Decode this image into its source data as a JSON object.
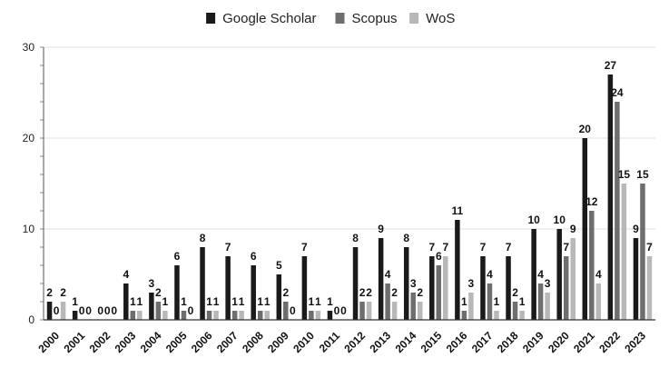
{
  "chart_data": {
    "type": "bar",
    "title": "",
    "xlabel": "",
    "ylabel": "",
    "ylim": [
      0,
      30
    ],
    "yticks": [
      0,
      10,
      20,
      30
    ],
    "grid": true,
    "legend_position": "top-center",
    "categories": [
      "2000",
      "2001",
      "2002",
      "2003",
      "2004",
      "2005",
      "2006",
      "2007",
      "2008",
      "2009",
      "2010",
      "2011",
      "2012",
      "2013",
      "2014",
      "2015",
      "2016",
      "2017",
      "2018",
      "2019",
      "2020",
      "2021",
      "2022",
      "2023"
    ],
    "series": [
      {
        "name": "Google Scholar",
        "color": "#1a1a1a",
        "values": [
          2,
          1,
          0,
          4,
          3,
          6,
          8,
          7,
          6,
          5,
          7,
          1,
          8,
          9,
          8,
          7,
          11,
          7,
          7,
          10,
          10,
          20,
          27,
          9
        ]
      },
      {
        "name": "Scopus",
        "color": "#6e6e6e",
        "values": [
          0,
          0,
          0,
          1,
          2,
          1,
          1,
          1,
          1,
          2,
          1,
          0,
          2,
          4,
          3,
          6,
          1,
          4,
          2,
          4,
          7,
          12,
          24,
          15
        ]
      },
      {
        "name": "WoS",
        "color": "#b8b8b8",
        "values": [
          2,
          0,
          0,
          1,
          1,
          0,
          1,
          1,
          1,
          0,
          1,
          0,
          2,
          2,
          2,
          7,
          3,
          1,
          1,
          3,
          9,
          4,
          15,
          7
        ]
      }
    ]
  }
}
